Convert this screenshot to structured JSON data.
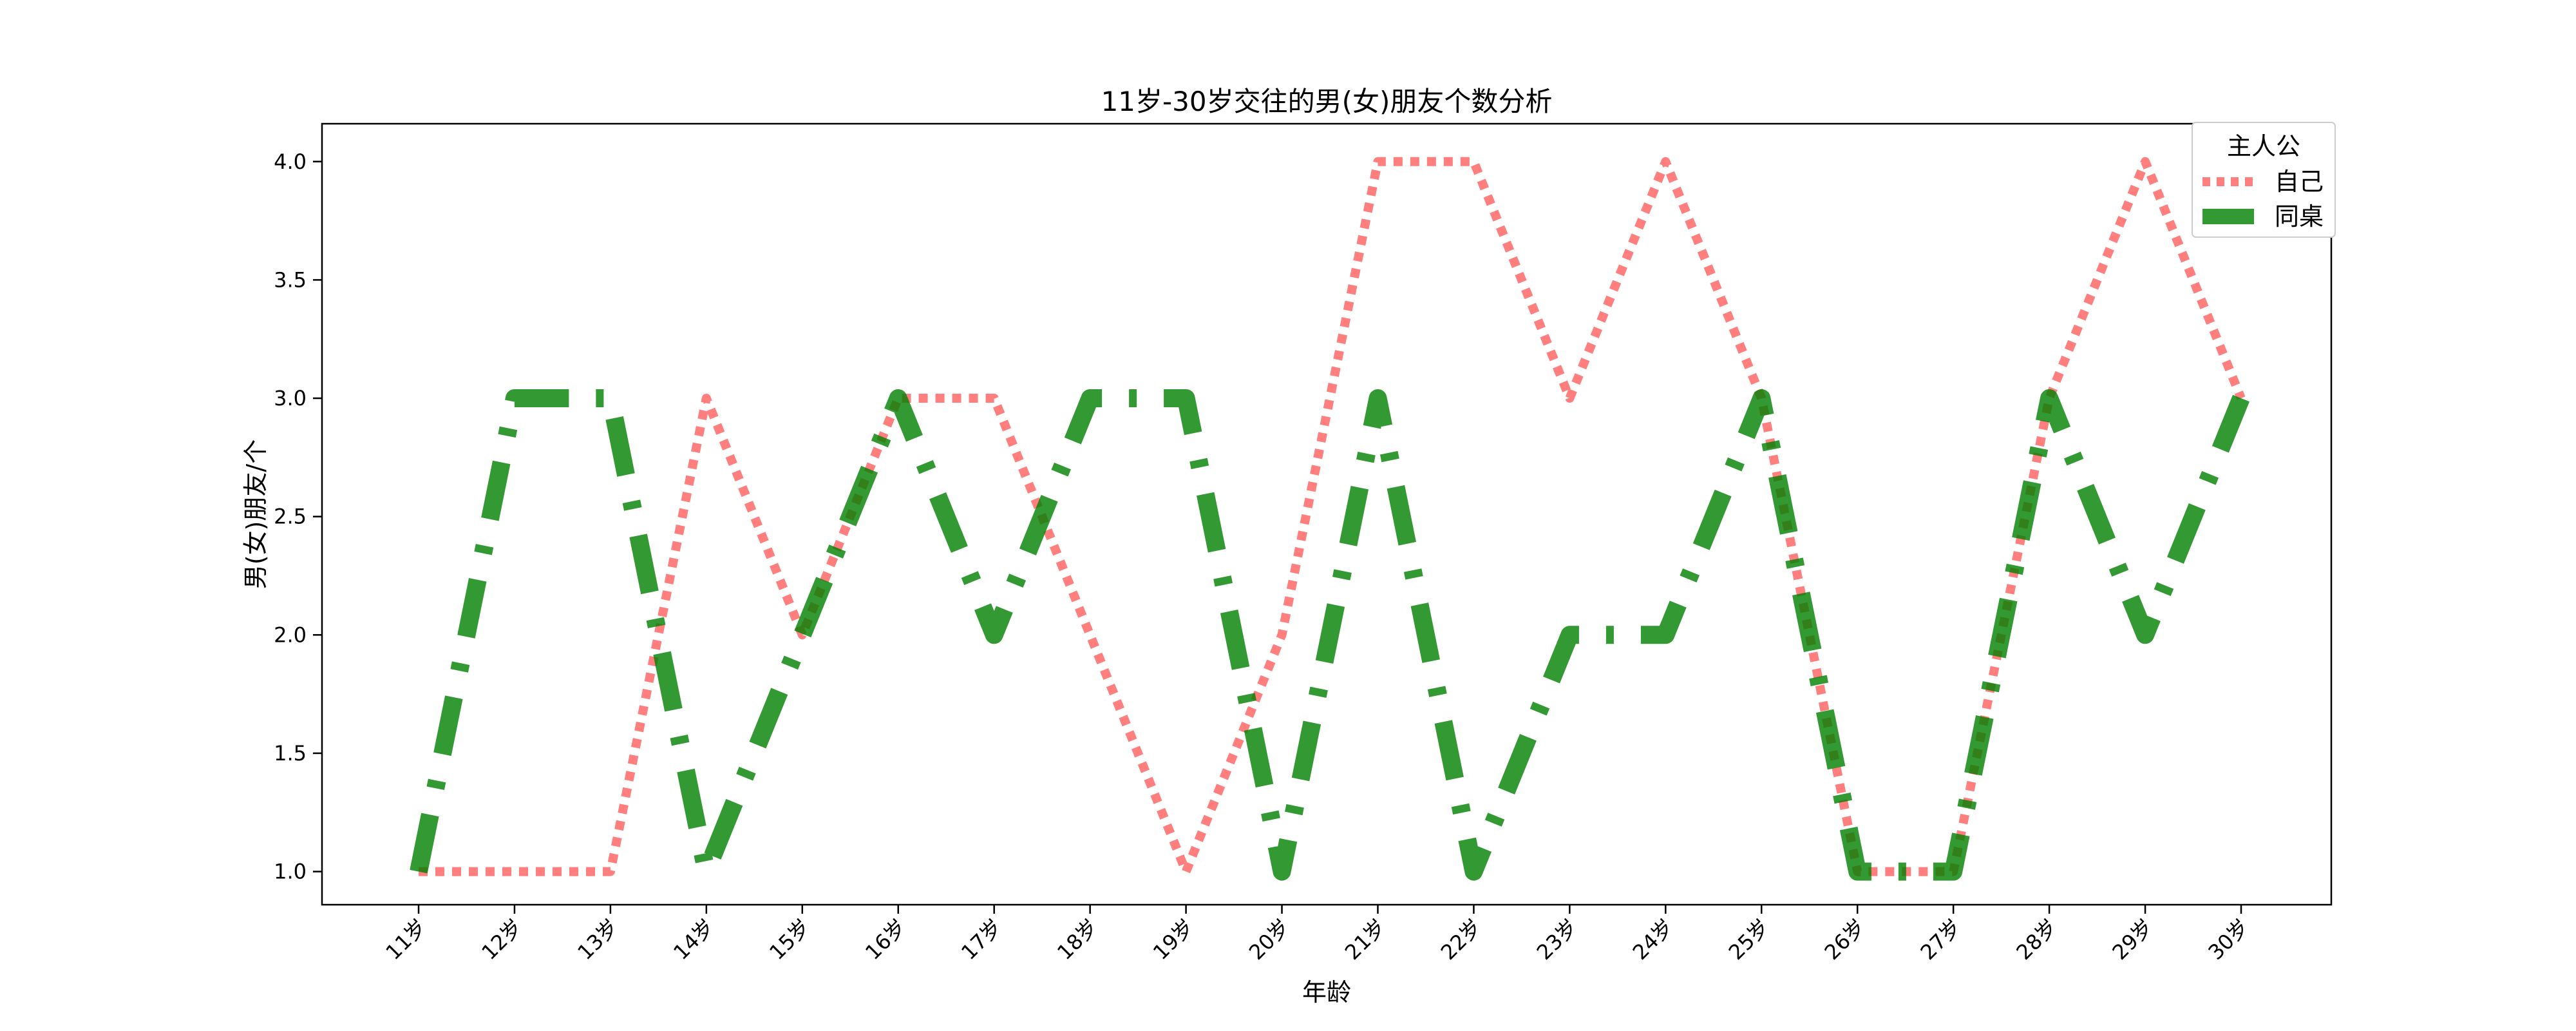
{
  "chart_data": {
    "type": "line",
    "title": "11岁-30岁交往的男(女)朋友个数分析",
    "xlabel": "年龄",
    "ylabel": "男(女)朋友/个",
    "categories": [
      "11岁",
      "12岁",
      "13岁",
      "14岁",
      "15岁",
      "16岁",
      "17岁",
      "18岁",
      "19岁",
      "20岁",
      "21岁",
      "22岁",
      "23岁",
      "24岁",
      "25岁",
      "26岁",
      "27岁",
      "28岁",
      "29岁",
      "30岁"
    ],
    "yticks": [
      "1.0",
      "1.5",
      "2.0",
      "2.5",
      "3.0",
      "3.5",
      "4.0"
    ],
    "ylim": [
      0.86,
      4.16
    ],
    "grid": false,
    "legend": {
      "title": "主人公",
      "placement": "top-right"
    },
    "series": [
      {
        "name": "自己",
        "color": "#ff0000",
        "opacity": 0.5,
        "style": "dotted",
        "values": [
          1,
          1,
          1,
          3,
          2,
          3,
          3,
          2,
          1,
          2,
          4,
          4,
          3,
          4,
          3,
          1,
          1,
          3,
          4,
          3
        ]
      },
      {
        "name": "同桌",
        "color": "#007f00",
        "opacity": 0.8,
        "style": "dashdot",
        "values": [
          1,
          3,
          3,
          1,
          2,
          3,
          2,
          3,
          3,
          1,
          3,
          1,
          2,
          2,
          3,
          1,
          1,
          3,
          2,
          3
        ]
      }
    ]
  }
}
